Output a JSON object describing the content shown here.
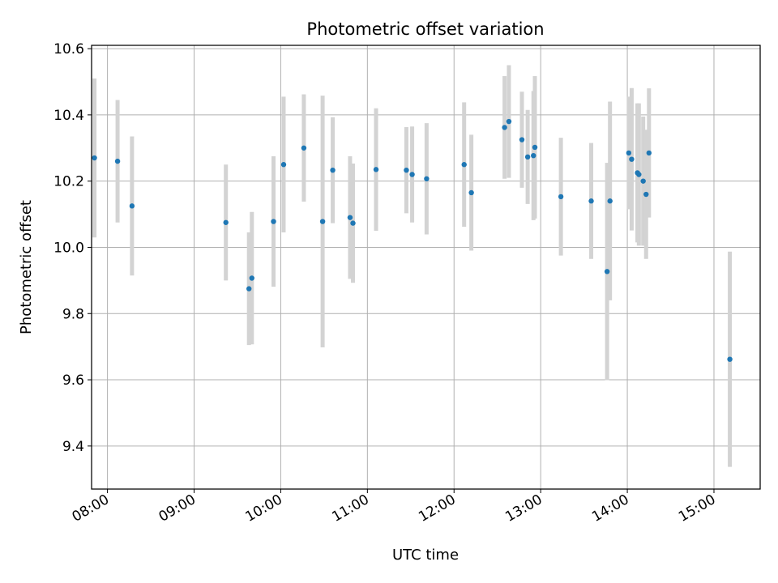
{
  "chart_data": {
    "type": "scatter",
    "title": "Photometric offset variation",
    "xlabel": "UTC time",
    "ylabel": "Photometric offset",
    "x_ticks": [
      "08:00",
      "09:00",
      "10:00",
      "11:00",
      "12:00",
      "13:00",
      "14:00",
      "15:00"
    ],
    "y_ticks": [
      "9.4",
      "9.6",
      "9.8",
      "10.0",
      "10.2",
      "10.4",
      "10.6"
    ],
    "xlim": [
      "07:49",
      "15:32"
    ],
    "ylim": [
      9.27,
      10.61
    ],
    "grid": true,
    "marker_color": "#1f77b4",
    "errorbar_color": "#d3d3d3",
    "series": [
      {
        "points": [
          {
            "t": "07:51",
            "y": 10.27,
            "err": 0.24
          },
          {
            "t": "08:07",
            "y": 10.26,
            "err": 0.185
          },
          {
            "t": "08:17",
            "y": 10.125,
            "err": 0.21
          },
          {
            "t": "09:22",
            "y": 10.075,
            "err": 0.175
          },
          {
            "t": "09:38",
            "y": 9.875,
            "err": 0.17
          },
          {
            "t": "09:40",
            "y": 9.907,
            "err": 0.2
          },
          {
            "t": "09:55",
            "y": 10.078,
            "err": 0.197
          },
          {
            "t": "10:02",
            "y": 10.25,
            "err": 0.205
          },
          {
            "t": "10:16",
            "y": 10.3,
            "err": 0.162
          },
          {
            "t": "10:29",
            "y": 10.078,
            "err": 0.38
          },
          {
            "t": "10:36",
            "y": 10.233,
            "err": 0.16
          },
          {
            "t": "10:48",
            "y": 10.09,
            "err": 0.185
          },
          {
            "t": "10:50",
            "y": 10.073,
            "err": 0.18
          },
          {
            "t": "11:06",
            "y": 10.235,
            "err": 0.185
          },
          {
            "t": "11:27",
            "y": 10.233,
            "err": 0.13
          },
          {
            "t": "11:31",
            "y": 10.22,
            "err": 0.145
          },
          {
            "t": "11:41",
            "y": 10.207,
            "err": 0.168
          },
          {
            "t": "12:07",
            "y": 10.25,
            "err": 0.188
          },
          {
            "t": "12:12",
            "y": 10.165,
            "err": 0.175
          },
          {
            "t": "12:35",
            "y": 10.362,
            "err": 0.155
          },
          {
            "t": "12:38",
            "y": 10.38,
            "err": 0.17
          },
          {
            "t": "12:47",
            "y": 10.325,
            "err": 0.145
          },
          {
            "t": "12:51",
            "y": 10.273,
            "err": 0.142
          },
          {
            "t": "12:55",
            "y": 10.277,
            "err": 0.195
          },
          {
            "t": "12:56",
            "y": 10.302,
            "err": 0.215
          },
          {
            "t": "13:14",
            "y": 10.153,
            "err": 0.178
          },
          {
            "t": "13:35",
            "y": 10.14,
            "err": 0.175
          },
          {
            "t": "13:46",
            "y": 9.927,
            "err": 0.328
          },
          {
            "t": "13:48",
            "y": 10.14,
            "err": 0.3
          },
          {
            "t": "14:01",
            "y": 10.285,
            "err": 0.17
          },
          {
            "t": "14:03",
            "y": 10.266,
            "err": 0.215
          },
          {
            "t": "14:07",
            "y": 10.225,
            "err": 0.21
          },
          {
            "t": "14:08",
            "y": 10.22,
            "err": 0.215
          },
          {
            "t": "14:11",
            "y": 10.2,
            "err": 0.195
          },
          {
            "t": "14:13",
            "y": 10.16,
            "err": 0.195
          },
          {
            "t": "14:15",
            "y": 10.285,
            "err": 0.195
          },
          {
            "t": "15:11",
            "y": 9.662,
            "err": 0.325
          }
        ]
      }
    ]
  }
}
